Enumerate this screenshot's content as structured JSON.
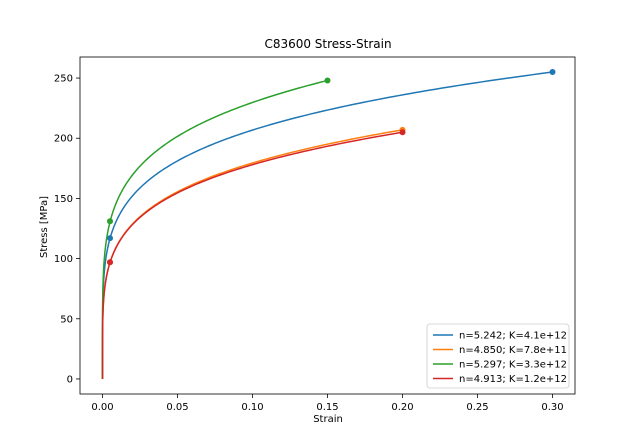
{
  "chart_data": {
    "type": "line",
    "title": "C83600 Stress-Strain",
    "xlabel": "Strain",
    "ylabel": "Stress [MPa]",
    "xlim": [
      -0.015,
      0.315
    ],
    "ylim": [
      -12.5,
      267.5
    ],
    "x_ticks": [
      0.0,
      0.05,
      0.1,
      0.15,
      0.2,
      0.25,
      0.3
    ],
    "x_tick_labels": [
      "0.00",
      "0.05",
      "0.10",
      "0.15",
      "0.20",
      "0.25",
      "0.30"
    ],
    "y_ticks": [
      0,
      50,
      100,
      150,
      200,
      250
    ],
    "y_tick_labels": [
      "0",
      "50",
      "100",
      "150",
      "200",
      "250"
    ],
    "grid": false,
    "legend_position": "lower-right",
    "series": [
      {
        "name": "n=5.242; K=4.1e+12",
        "color": "#1f77b4",
        "n": 5.242,
        "x_end": 0.3,
        "y_end": 255,
        "marker_points": [
          [
            0.005,
            117
          ],
          [
            0.3,
            255
          ]
        ]
      },
      {
        "name": "n=4.850; K=7.8e+11",
        "color": "#ff7f0e",
        "n": 4.85,
        "x_end": 0.2,
        "y_end": 207,
        "marker_points": [
          [
            0.005,
            97
          ],
          [
            0.2,
            207
          ]
        ]
      },
      {
        "name": "n=5.297; K=3.3e+12",
        "color": "#2ca02c",
        "n": 5.297,
        "x_end": 0.15,
        "y_end": 248,
        "marker_points": [
          [
            0.005,
            131
          ],
          [
            0.15,
            248
          ]
        ]
      },
      {
        "name": "n=4.913; K=1.2e+12",
        "color": "#d62728",
        "n": 4.913,
        "x_end": 0.2,
        "y_end": 205,
        "marker_points": [
          [
            0.005,
            97
          ],
          [
            0.2,
            205
          ]
        ]
      }
    ]
  }
}
